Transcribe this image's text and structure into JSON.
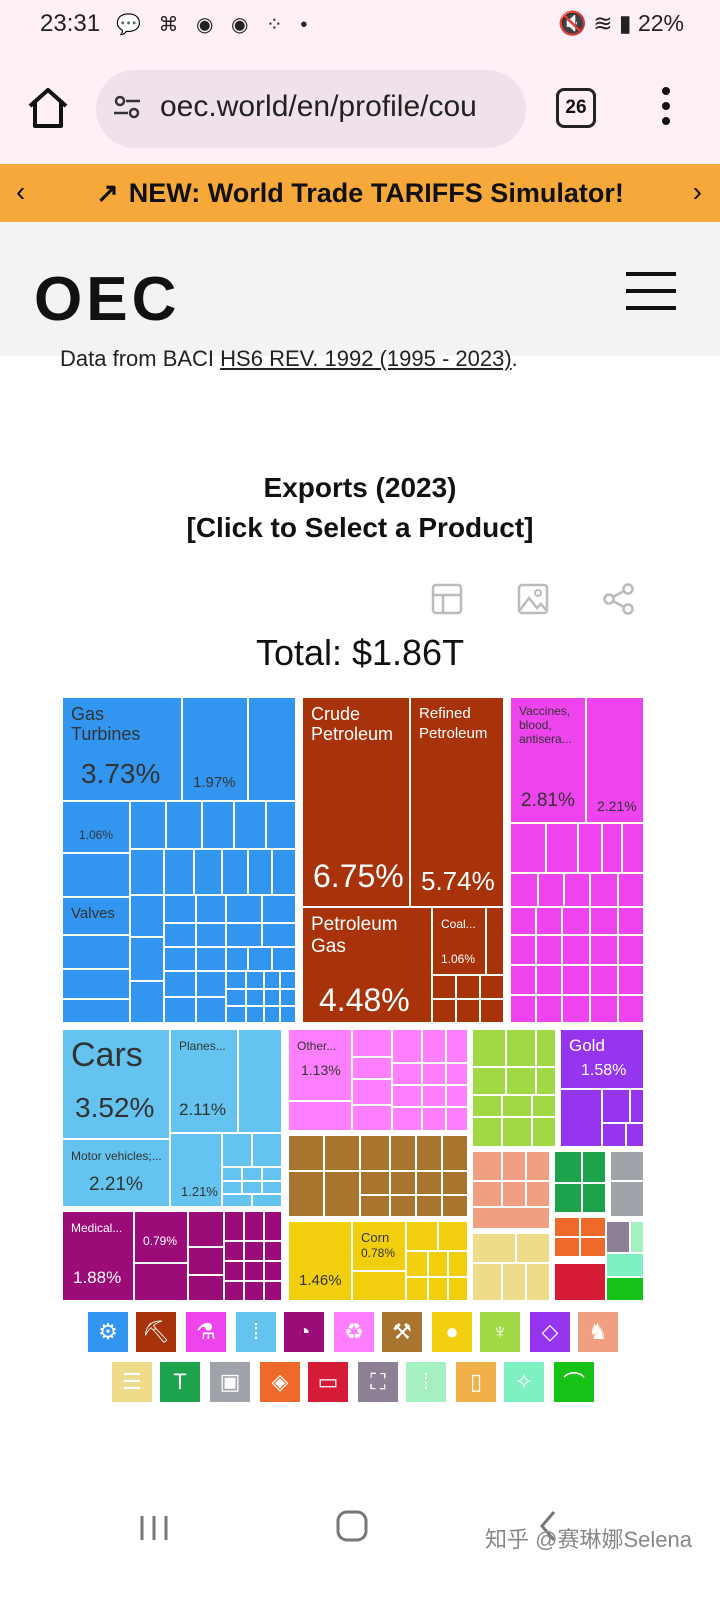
{
  "status": {
    "time": "23:31",
    "battery": "22%"
  },
  "browser": {
    "url": "oec.world/en/profile/cou",
    "tab_count": "26"
  },
  "banner": {
    "text": "NEW: World Trade TARIFFS Simulator!"
  },
  "site": {
    "logo": "OEC"
  },
  "data_source": {
    "prefix": "Data from BACI ",
    "link": "HS6 REV. 1992 (1995 - 2023)",
    "suffix": "."
  },
  "chart": {
    "title": "Exports (2023)",
    "subtitle": "[Click to Select a Product]",
    "total": "Total: $1.86T"
  },
  "tiles": {
    "gas_turbines": {
      "label": "Gas Turbines",
      "pct": "3.73%"
    },
    "m_197": {
      "pct": "1.97%"
    },
    "m_106": {
      "pct": "1.06%"
    },
    "valves": {
      "label": "Valves"
    },
    "crude": {
      "label": "Crude Petroleum",
      "pct": "6.75%"
    },
    "refined": {
      "label": "Refined Petroleum",
      "pct": "5.74%"
    },
    "petgas": {
      "label": "Petroleum Gas",
      "pct": "4.48%"
    },
    "coal": {
      "label": "Coal...",
      "pct": "1.06%"
    },
    "vaccines": {
      "label": "Vaccines, blood, antisera...",
      "pct": "2.81%"
    },
    "c_221": {
      "pct": "2.21%"
    },
    "cars": {
      "label": "Cars",
      "pct": "3.52%"
    },
    "planes": {
      "label": "Planes...",
      "pct": "2.11%"
    },
    "motor": {
      "label": "Motor vehicles;...",
      "pct": "2.21%"
    },
    "t_121": {
      "pct": "1.21%"
    },
    "medical": {
      "label": "Medical...",
      "pct": "1.88%"
    },
    "p_079": {
      "pct": "0.79%"
    },
    "other": {
      "label": "Other...",
      "pct": "1.13%"
    },
    "gold": {
      "label": "Gold",
      "pct": "1.58%"
    },
    "y_146": {
      "pct": "1.46%"
    },
    "corn": {
      "label": "Corn",
      "pct": "0.78%"
    }
  },
  "colors": {
    "machines": "#3296f0",
    "minerals": "#a8330b",
    "chemicals": "#ee44ee",
    "transport": "#64c3ef",
    "instruments": "#9b0c78",
    "plastics": "#ff80ff",
    "metals": "#a8742e",
    "foodstuffs": "#f2cf0e",
    "vegetable": "#a1d944",
    "precious": "#9535ee",
    "animal": "#f0a080",
    "paper": "#eedc8a",
    "textiles": "#1da34b",
    "stone": "#a0a3aa",
    "misc": "#ee6a2a",
    "art": "#d61b36",
    "arms": "#8d7f94",
    "animal_hides": "#7ef0c2",
    "footwear": "#15c215",
    "weapons": "#a5f0c0"
  },
  "legend": [
    "gear-icon",
    "pickaxe-icon",
    "flask-icon",
    "road-icon",
    "gauge-icon",
    "recycle-icon",
    "anvil-icon",
    "fruit-icon",
    "wheat-icon",
    "diamond-icon",
    "animal-icon",
    "scroll-icon",
    "shirt-icon",
    "box-icon",
    "stone-icon",
    "ticket-icon",
    "easel-icon",
    "ammo-icon",
    "vial-icon",
    "leather-icon",
    "shoe-icon"
  ],
  "watermark": "知乎 @赛琳娜Selena"
}
